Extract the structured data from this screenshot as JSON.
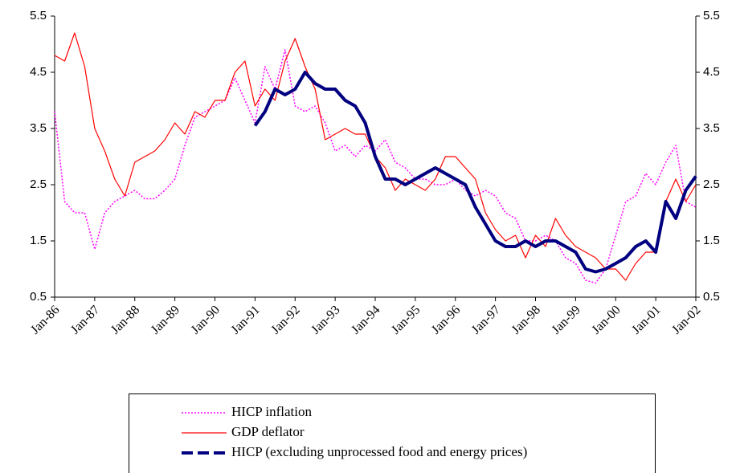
{
  "chart_data": {
    "type": "line",
    "x": [
      1986,
      1986.25,
      1986.5,
      1986.75,
      1987,
      1987.25,
      1987.5,
      1987.75,
      1988,
      1988.25,
      1988.5,
      1988.75,
      1989,
      1989.25,
      1989.5,
      1989.75,
      1990,
      1990.25,
      1990.5,
      1990.75,
      1991,
      1991.25,
      1991.5,
      1991.75,
      1992,
      1992.25,
      1992.5,
      1992.75,
      1993,
      1993.25,
      1993.5,
      1993.75,
      1994,
      1994.25,
      1994.5,
      1994.75,
      1995,
      1995.25,
      1995.5,
      1995.75,
      1996,
      1996.25,
      1996.5,
      1996.75,
      1997,
      1997.25,
      1997.5,
      1997.75,
      1998,
      1998.25,
      1998.5,
      1998.75,
      1999,
      1999.25,
      1999.5,
      1999.75,
      2000,
      2000.25,
      2000.5,
      2000.75,
      2001,
      2001.25,
      2001.5,
      2001.75,
      2002
    ],
    "series": [
      {
        "name": "HICP inflation",
        "color": "#ff00ff",
        "style": "dotted",
        "values": [
          3.8,
          2.2,
          2.0,
          2.0,
          1.35,
          2.0,
          2.2,
          2.3,
          2.4,
          2.25,
          2.25,
          2.4,
          2.6,
          3.2,
          3.7,
          3.8,
          3.9,
          4.0,
          4.4,
          4.0,
          3.6,
          4.6,
          4.2,
          4.9,
          3.9,
          3.8,
          3.9,
          3.6,
          3.1,
          3.2,
          3.0,
          3.2,
          3.1,
          3.3,
          2.9,
          2.8,
          2.6,
          2.6,
          2.5,
          2.5,
          2.6,
          2.4,
          2.3,
          2.4,
          2.3,
          2.0,
          1.9,
          1.5,
          1.5,
          1.6,
          1.5,
          1.2,
          1.1,
          0.8,
          0.75,
          1.0,
          1.6,
          2.2,
          2.3,
          2.7,
          2.5,
          2.9,
          3.2,
          2.2,
          2.1
        ]
      },
      {
        "name": "GDP deflator",
        "color": "#ff0000",
        "style": "solid",
        "values": [
          4.8,
          4.7,
          5.2,
          4.6,
          3.5,
          3.1,
          2.6,
          2.3,
          2.9,
          3.0,
          3.1,
          3.3,
          3.6,
          3.4,
          3.8,
          3.7,
          4.0,
          4.0,
          4.5,
          4.7,
          3.9,
          4.2,
          4.0,
          4.7,
          5.1,
          4.6,
          4.2,
          3.3,
          3.4,
          3.5,
          3.4,
          3.4,
          3.0,
          2.8,
          2.4,
          2.6,
          2.5,
          2.4,
          2.6,
          3.0,
          3.0,
          2.8,
          2.6,
          2.0,
          1.7,
          1.5,
          1.6,
          1.2,
          1.6,
          1.4,
          1.9,
          1.6,
          1.4,
          1.3,
          1.2,
          1.0,
          1.0,
          0.8,
          1.1,
          1.3,
          1.3,
          2.2,
          2.6,
          2.2,
          2.5
        ]
      },
      {
        "name": "HICP (excluding unprocessed food and energy prices)",
        "color": "#000080",
        "style": "thick",
        "values": [
          null,
          null,
          null,
          null,
          null,
          null,
          null,
          null,
          null,
          null,
          null,
          null,
          null,
          null,
          null,
          null,
          null,
          null,
          null,
          null,
          3.55,
          3.8,
          4.2,
          4.1,
          4.2,
          4.5,
          4.3,
          4.2,
          4.2,
          4.0,
          3.9,
          3.6,
          3.0,
          2.6,
          2.6,
          2.5,
          2.6,
          2.7,
          2.8,
          2.7,
          2.6,
          2.5,
          2.1,
          1.8,
          1.5,
          1.4,
          1.4,
          1.5,
          1.4,
          1.5,
          1.5,
          1.4,
          1.3,
          1.0,
          0.95,
          1.0,
          1.1,
          1.2,
          1.4,
          1.5,
          1.3,
          2.2,
          1.9,
          2.4,
          2.65
        ]
      }
    ],
    "xlim": [
      1986,
      2002
    ],
    "xticks": [
      {
        "value": 1986,
        "label": "Jan-86"
      },
      {
        "value": 1987,
        "label": "Jan-87"
      },
      {
        "value": 1988,
        "label": "Jan-88"
      },
      {
        "value": 1989,
        "label": "Jan-89"
      },
      {
        "value": 1990,
        "label": "Jan-90"
      },
      {
        "value": 1991,
        "label": "Jan-91"
      },
      {
        "value": 1992,
        "label": "Jan-92"
      },
      {
        "value": 1993,
        "label": "Jan-93"
      },
      {
        "value": 1994,
        "label": "Jan-94"
      },
      {
        "value": 1995,
        "label": "Jan-95"
      },
      {
        "value": 1996,
        "label": "Jan-96"
      },
      {
        "value": 1997,
        "label": "Jan-97"
      },
      {
        "value": 1998,
        "label": "Jan-98"
      },
      {
        "value": 1999,
        "label": "Jan-99"
      },
      {
        "value": 2000,
        "label": "Jan-00"
      },
      {
        "value": 2001,
        "label": "Jan-01"
      },
      {
        "value": 2002,
        "label": "Jan-02"
      }
    ],
    "ylim": [
      0.5,
      5.5
    ],
    "yticks": [
      0.5,
      1.5,
      2.5,
      3.5,
      4.5,
      5.5
    ],
    "y2lim": [
      0.5,
      5.5
    ],
    "y2ticks": [
      0.5,
      1.5,
      2.5,
      3.5,
      4.5,
      5.5
    ],
    "grid": false,
    "legend": "bottom"
  }
}
